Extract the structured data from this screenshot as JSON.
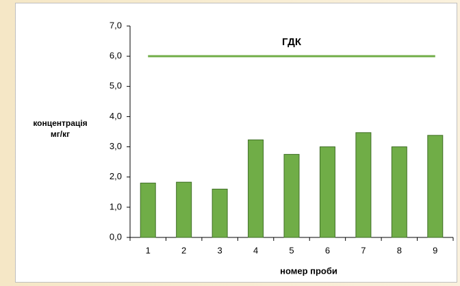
{
  "chart_data": {
    "type": "bar",
    "categories": [
      "1",
      "2",
      "3",
      "4",
      "5",
      "6",
      "7",
      "8",
      "9"
    ],
    "values": [
      1.8,
      1.83,
      1.6,
      3.23,
      2.75,
      3.0,
      3.47,
      3.0,
      3.38
    ],
    "color": "#70ad47",
    "xlabel": "номер проби",
    "ylabel": [
      "концентрація",
      "мг/кг"
    ],
    "ylim": [
      0,
      7
    ],
    "yticks": [
      {
        "value": 0,
        "label": "0,0"
      },
      {
        "value": 1,
        "label": "1,0"
      },
      {
        "value": 2,
        "label": "2,0"
      },
      {
        "value": 3,
        "label": "3,0"
      },
      {
        "value": 4,
        "label": "4,0"
      },
      {
        "value": 5,
        "label": "5,0"
      },
      {
        "value": 6,
        "label": "6,0"
      },
      {
        "value": 7,
        "label": "7,0"
      }
    ],
    "reference_line": {
      "label": "ГДК",
      "value": 6,
      "color": "#70ad47"
    },
    "grid": false
  }
}
